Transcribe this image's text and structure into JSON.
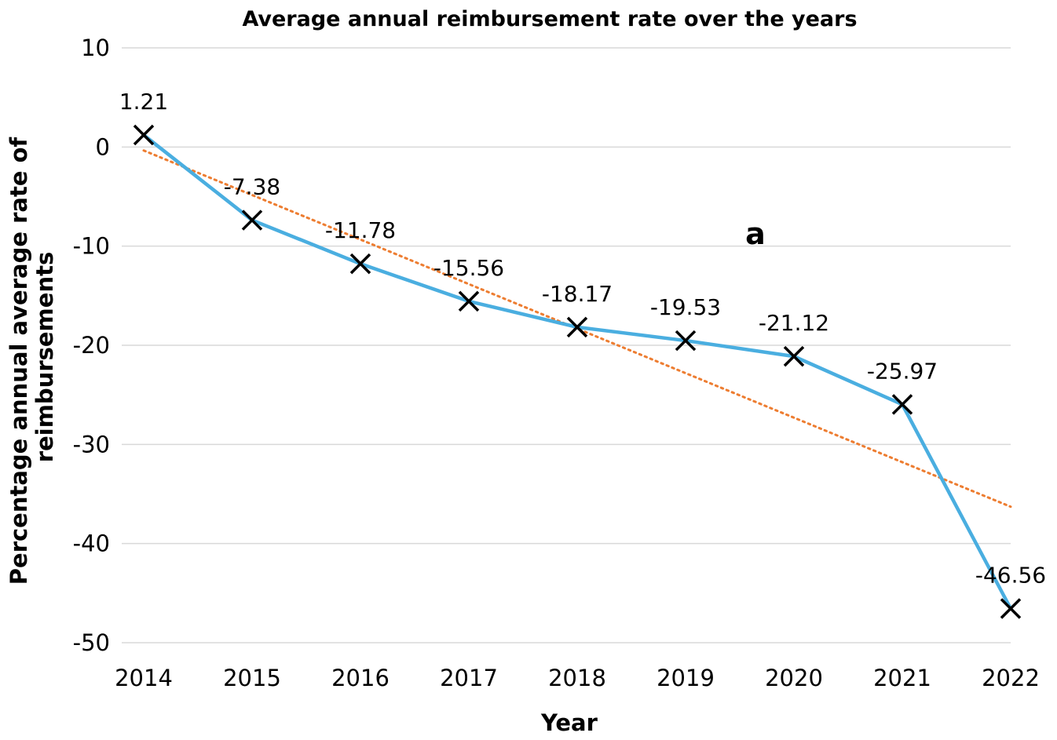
{
  "chart_data": {
    "type": "line",
    "title": "Average annual reimbursement rate over the years",
    "xlabel": "Year",
    "ylabel": "Percentage annual average rate of reimbursements",
    "x": [
      "2014",
      "2015",
      "2016",
      "2017",
      "2018",
      "2019",
      "2020",
      "2021",
      "2022"
    ],
    "series": [
      {
        "values": [
          1.21,
          -7.38,
          -11.78,
          -15.56,
          -18.17,
          -19.53,
          -21.12,
          -25.97,
          -46.56
        ],
        "data_labels": [
          "1.21",
          "-7.38",
          "-11.78",
          "-15.56",
          "-18.17",
          "-19.53",
          "-21.12",
          "-25.97",
          "-46.56"
        ],
        "color": "#4aaee0",
        "marker": "x",
        "marker_color": "#000000"
      }
    ],
    "trendline": {
      "type": "linear",
      "style": "dotted",
      "color": "#ed7d31"
    },
    "ylim": [
      -50,
      10
    ],
    "yticks": [
      "10",
      "0",
      "-10",
      "-20",
      "-30",
      "-40",
      "-50"
    ],
    "grid": true,
    "annotation": "a"
  }
}
